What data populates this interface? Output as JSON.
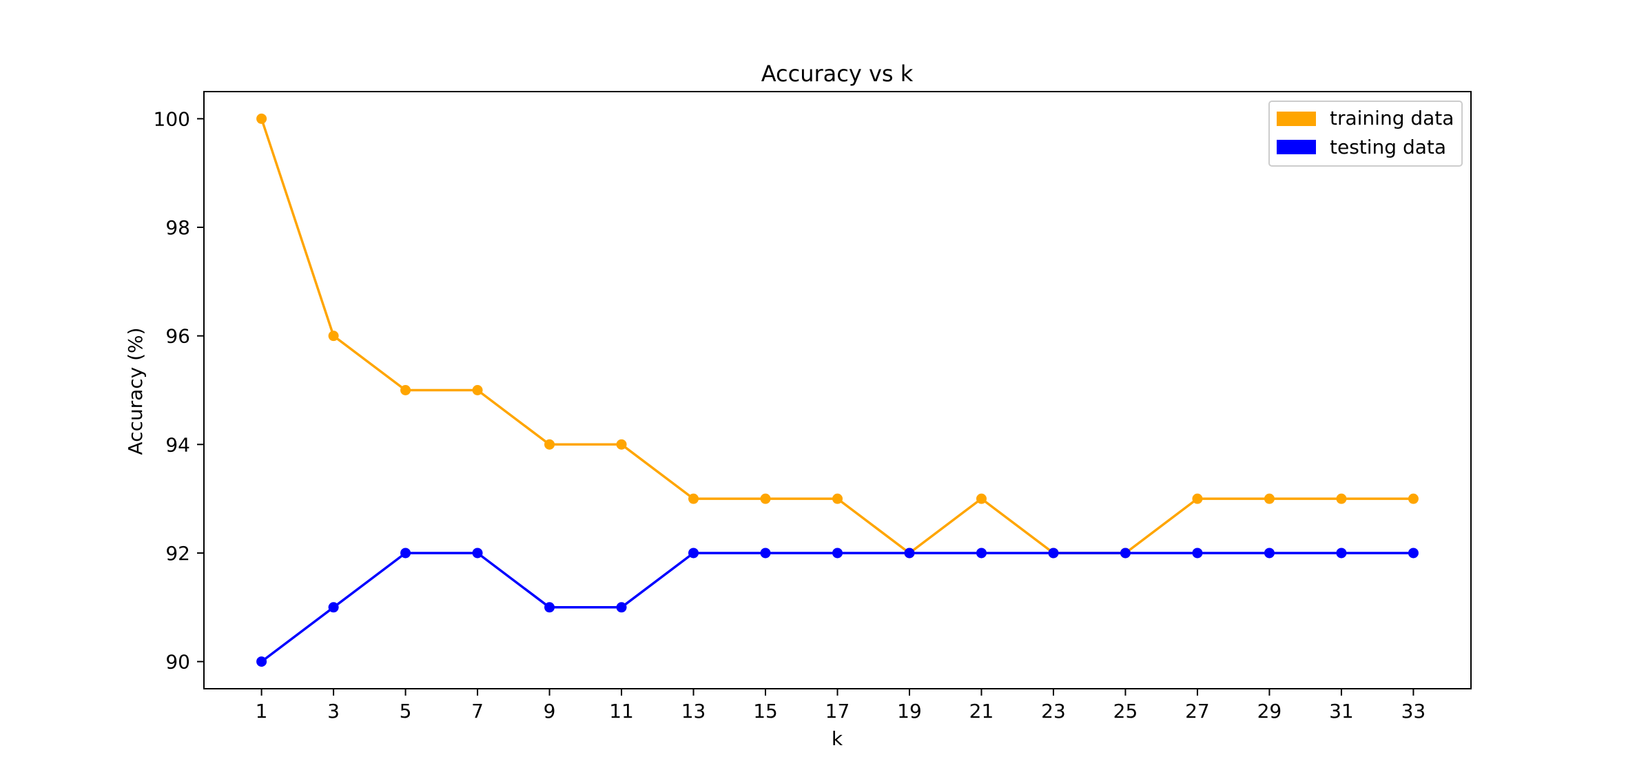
{
  "chart_data": {
    "type": "line",
    "title": "Accuracy vs k",
    "xlabel": "k",
    "ylabel": "Accuracy (%)",
    "x": [
      1,
      3,
      5,
      7,
      9,
      11,
      13,
      15,
      17,
      19,
      21,
      23,
      25,
      27,
      29,
      31,
      33
    ],
    "xlim": [
      -0.6,
      34.6
    ],
    "ylim": [
      89.5,
      100.5
    ],
    "yticks": [
      90,
      92,
      94,
      96,
      98,
      100
    ],
    "grid": false,
    "legend_position": "top-right",
    "series": [
      {
        "name": "training data",
        "color": "#FFA500",
        "marker": "circle",
        "values": [
          100,
          96,
          95,
          95,
          94,
          94,
          93,
          93,
          93,
          92,
          93,
          92,
          92,
          93,
          93,
          93,
          93
        ]
      },
      {
        "name": "testing data",
        "color": "#0000FF",
        "marker": "circle",
        "values": [
          90,
          91,
          92,
          92,
          91,
          91,
          92,
          92,
          92,
          92,
          92,
          92,
          92,
          92,
          92,
          92,
          92
        ]
      }
    ]
  }
}
